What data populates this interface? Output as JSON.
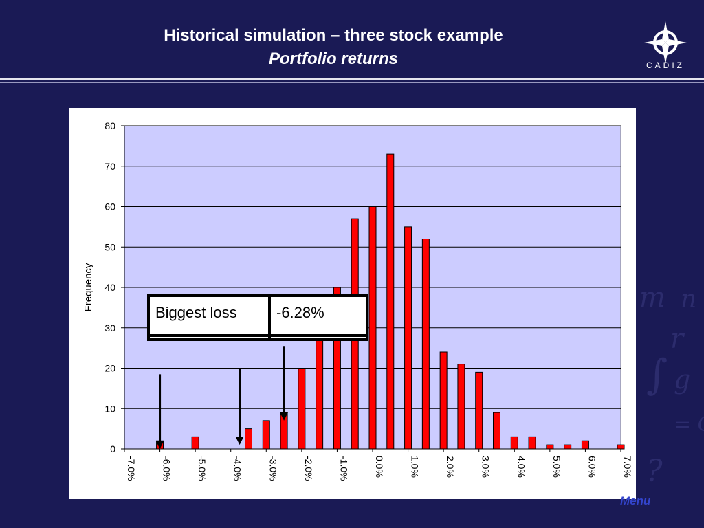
{
  "header": {
    "title": "Historical simulation – three stock example",
    "subtitle": "Portfolio returns",
    "logo_text": "CADIZ"
  },
  "footer": {
    "menu_label": "Menu"
  },
  "result_table": {
    "label": "Biggest loss",
    "value": "-6.28%"
  },
  "colors": {
    "background": "#1a1a55",
    "plot_area": "#ccccff",
    "bar_fill": "#ff0000",
    "bar_stroke": "#000000"
  },
  "chart_data": {
    "type": "bar",
    "title": "",
    "xlabel": "",
    "ylabel": "Frequency",
    "ylim": [
      0,
      80
    ],
    "yticks": [
      0,
      10,
      20,
      30,
      40,
      50,
      60,
      70,
      80
    ],
    "xticks": [
      "-7.0%",
      "-6.0%",
      "-5.0%",
      "-4.0%",
      "-3.0%",
      "-2.0%",
      "-1.0%",
      "0.0%",
      "1.0%",
      "2.0%",
      "3.0%",
      "4.0%",
      "5.0%",
      "6.0%",
      "7.0%"
    ],
    "grid": "horizontal",
    "bins": [
      -7.0,
      -6.5,
      -6.0,
      -5.5,
      -5.0,
      -4.5,
      -4.0,
      -3.5,
      -3.0,
      -2.5,
      -2.0,
      -1.5,
      -1.0,
      -0.5,
      0.0,
      0.5,
      1.0,
      1.5,
      2.0,
      2.5,
      3.0,
      3.5,
      4.0,
      4.5,
      5.0,
      5.5,
      6.0,
      6.5,
      7.0
    ],
    "values": [
      0,
      0,
      2,
      0,
      3,
      0,
      0,
      5,
      7,
      9,
      20,
      30,
      40,
      57,
      60,
      73,
      55,
      52,
      24,
      21,
      19,
      9,
      3,
      3,
      1,
      1,
      2,
      0,
      1
    ],
    "annotations": [
      {
        "type": "arrow",
        "x": -6.0,
        "to_y": 0
      },
      {
        "type": "arrow",
        "x": -3.75,
        "to_y": 1
      },
      {
        "type": "arrow",
        "x": -2.5,
        "to_y": 7
      }
    ]
  }
}
